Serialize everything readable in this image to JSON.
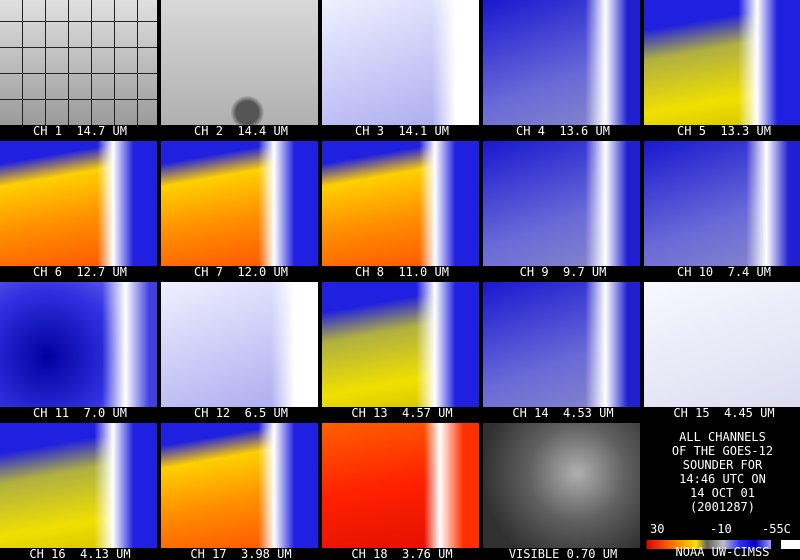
{
  "panels": [
    {
      "label": "CH 1  14.7 UM"
    },
    {
      "label": "CH 2  14.4 UM"
    },
    {
      "label": "CH 3  14.1 UM"
    },
    {
      "label": "CH 4  13.6 UM"
    },
    {
      "label": "CH 5  13.3 UM"
    },
    {
      "label": "CH 6  12.7 UM"
    },
    {
      "label": "CH 7  12.0 UM"
    },
    {
      "label": "CH 8  11.0 UM"
    },
    {
      "label": "CH 9  9.7 UM"
    },
    {
      "label": "CH 10  7.4 UM"
    },
    {
      "label": "CH 11  7.0 UM"
    },
    {
      "label": "CH 12  6.5 UM"
    },
    {
      "label": "CH 13  4.57 UM"
    },
    {
      "label": "CH 14  4.53 UM"
    },
    {
      "label": "CH 15  4.45 UM"
    },
    {
      "label": "CH 16  4.13 UM"
    },
    {
      "label": "CH 17  3.98 UM"
    },
    {
      "label": "CH 18  3.76 UM"
    },
    {
      "label": "VISIBLE 0.70 UM"
    }
  ],
  "info": {
    "lines": [
      "ALL CHANNELS",
      "OF THE GOES-12",
      "SOUNDER FOR",
      "14:46 UTC ON",
      "14 OCT 01",
      "(2001287)"
    ],
    "colorbar_labels": [
      "30",
      "-10",
      "-55C"
    ],
    "credit": "NOAA UW-CIMSS"
  }
}
